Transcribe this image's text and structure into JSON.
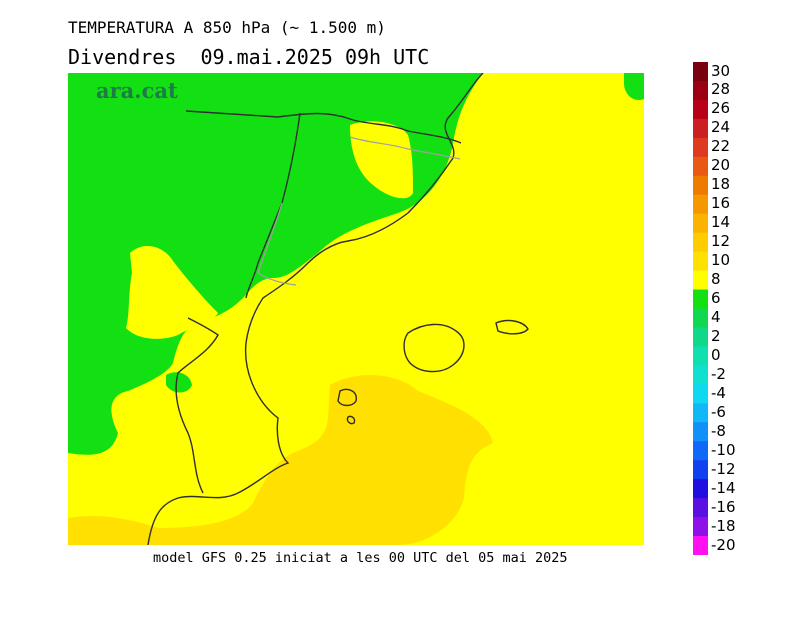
{
  "header": {
    "title": "TEMPERATURA A 850 hPa (~ 1.500 m)",
    "subtitle": "Divendres  09.mai.2025 09h UTC"
  },
  "footer": {
    "model_run": "model GFS 0.25 iniciat a les 00 UTC del 05 mai 2025"
  },
  "logo": {
    "text": "ara.cat",
    "color": "#1f7a4a"
  },
  "map": {
    "region": "Catalonia and western Mediterranean",
    "colors": {
      "green": "#13e013",
      "yellow": "#ffff00",
      "gold": "#ffe000",
      "border": "#2f2f2f",
      "land_border": "#a0a0a0"
    }
  },
  "legend": {
    "labels": [
      "30",
      "28",
      "26",
      "24",
      "22",
      "20",
      "18",
      "16",
      "14",
      "12",
      "10",
      "8",
      "6",
      "4",
      "2",
      "0",
      "-2",
      "-4",
      "-6",
      "-8",
      "-10",
      "-12",
      "-14",
      "-16",
      "-18",
      "-20"
    ],
    "colors": [
      "#7a0010",
      "#9a0012",
      "#b80018",
      "#cc1f1f",
      "#dd3a1f",
      "#e85a12",
      "#ee7a00",
      "#f59800",
      "#fbb200",
      "#ffcc00",
      "#ffe000",
      "#ffff00",
      "#13e013",
      "#10d850",
      "#0fd888",
      "#10dfb0",
      "#10e0d0",
      "#10d8f0",
      "#10b8f8",
      "#1090f8",
      "#1068f8",
      "#1040f0",
      "#2010e0",
      "#5a10e0",
      "#9010e8",
      "#ff10f0"
    ]
  }
}
